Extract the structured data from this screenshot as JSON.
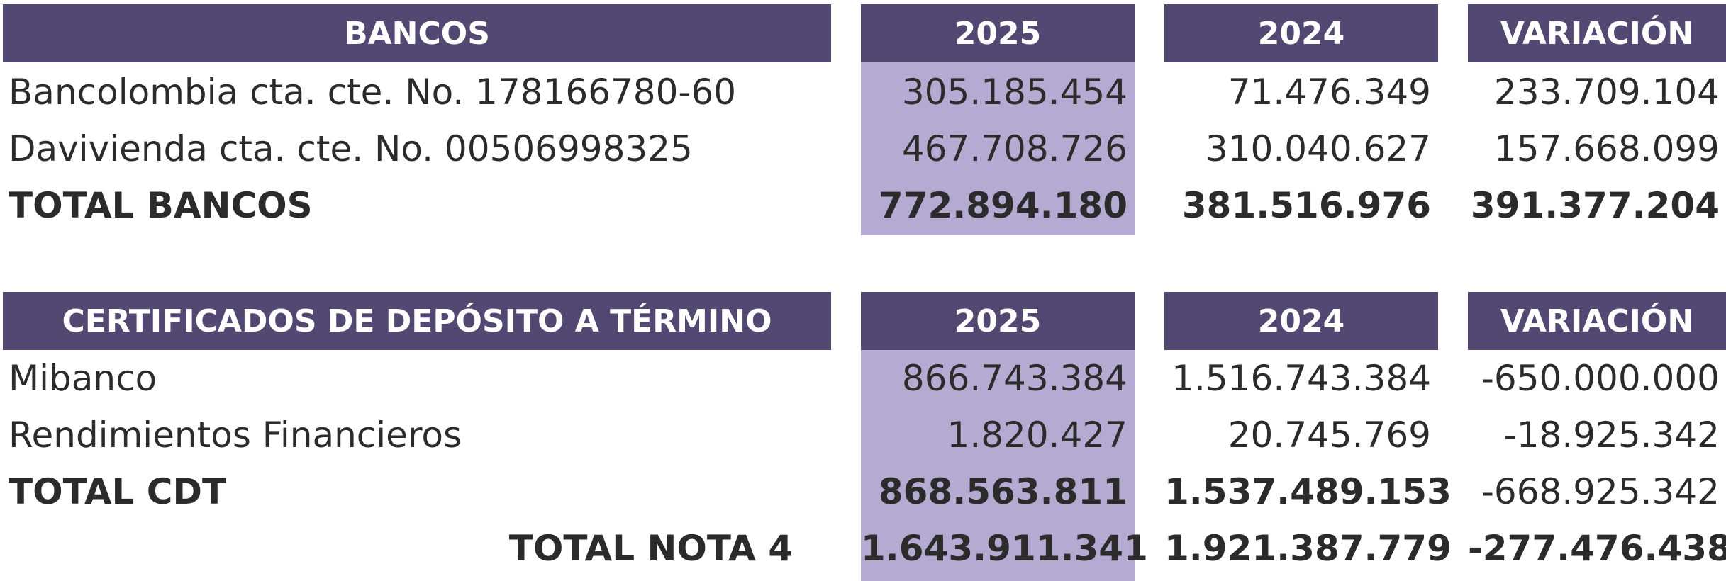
{
  "bancos": {
    "header": {
      "title": "BANCOS",
      "y2025": "2025",
      "y2024": "2024",
      "variation": "VARIACIÓN"
    },
    "rows": [
      {
        "label": "Bancolombia cta. cte. No. 178166780-60",
        "v2025": "305.185.454",
        "v2024": "71.476.349",
        "variation": "233.709.104"
      },
      {
        "label": "Davivienda cta. cte. No. 00506998325",
        "v2025": "467.708.726",
        "v2024": "310.040.627",
        "variation": "157.668.099"
      }
    ],
    "total": {
      "label": "TOTAL BANCOS",
      "v2025": "772.894.180",
      "v2024": "381.516.976",
      "variation": "391.377.204"
    }
  },
  "cdt": {
    "header": {
      "title": "CERTIFICADOS DE DEPÓSITO A TÉRMINO",
      "y2025": "2025",
      "y2024": "2024",
      "variation": "VARIACIÓN"
    },
    "rows": [
      {
        "label": "Mibanco",
        "v2025": "866.743.384",
        "v2024": "1.516.743.384",
        "variation": "-650.000.000"
      },
      {
        "label": "Rendimientos Financieros",
        "v2025": "1.820.427",
        "v2024": "20.745.769",
        "variation": "-18.925.342"
      }
    ],
    "total": {
      "label": "TOTAL CDT",
      "v2025": "868.563.811",
      "v2024": "1.537.489.153",
      "variation": "-668.925.342"
    }
  },
  "nota_total": {
    "label": "TOTAL NOTA 4",
    "v2025": "1.643.911.341",
    "v2024": "1.921.387.779",
    "variation": "-277.476.438"
  },
  "colors": {
    "header_bg": "#524872",
    "highlight_2025": "#b5abd2",
    "header_text": "#ffffff",
    "body_text": "#2b2b2b"
  }
}
